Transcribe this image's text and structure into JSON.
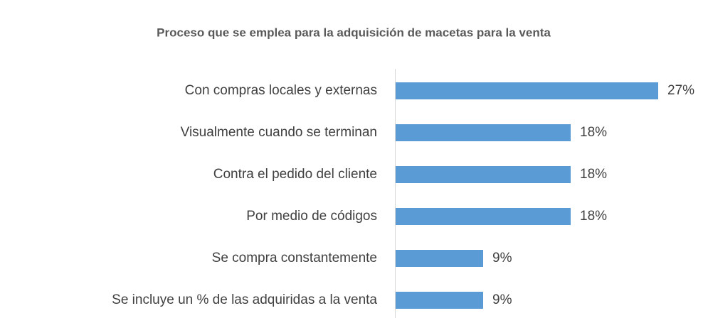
{
  "chart_data": {
    "type": "bar",
    "orientation": "horizontal",
    "title": "Proceso que se emplea para la adquisición de macetas para la venta",
    "categories": [
      "Con compras locales y externas",
      "Visualmente cuando se terminan",
      "Contra el pedido del cliente",
      "Por medio de códigos",
      "Se compra constantemente",
      "Se incluye un % de las adquiridas a la venta"
    ],
    "values": [
      27,
      18,
      18,
      18,
      9,
      9
    ],
    "value_labels": [
      "27%",
      "18%",
      "18%",
      "18%",
      "9%",
      "9%"
    ],
    "color": "#5b9bd5"
  }
}
